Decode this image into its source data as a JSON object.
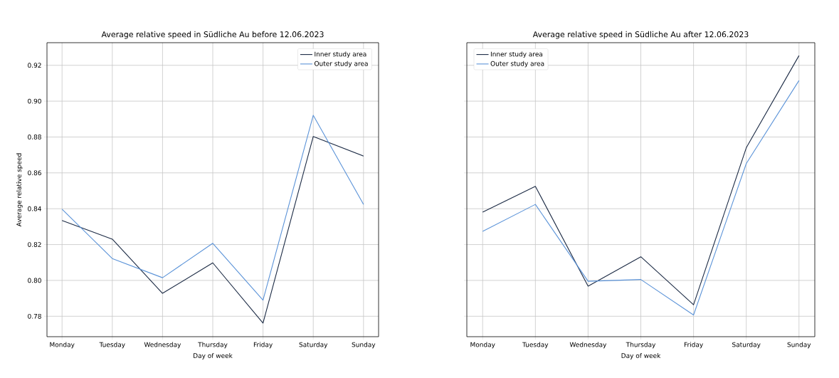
{
  "chart_data": [
    {
      "type": "line",
      "title": "Average relative speed in Südliche Au before 12.06.2023",
      "xlabel": "Day of week",
      "ylabel": "Average relative speed",
      "categories": [
        "Monday",
        "Tuesday",
        "Wednesday",
        "Thursday",
        "Friday",
        "Saturday",
        "Sunday"
      ],
      "series": [
        {
          "name": "Inner study area",
          "color": "#1b2a44",
          "values": [
            0.8334,
            0.823,
            0.7928,
            0.8098,
            0.7762,
            0.8803,
            0.8694
          ]
        },
        {
          "name": "Outer study area",
          "color": "#5b93d8",
          "values": [
            0.8397,
            0.8122,
            0.8015,
            0.8207,
            0.789,
            0.8921,
            0.8424
          ]
        }
      ],
      "ylim": [
        0.7686,
        0.9326
      ],
      "yticks": [
        {
          "value": 0.78,
          "label": "0.78"
        },
        {
          "value": 0.8,
          "label": "0.80"
        },
        {
          "value": 0.82,
          "label": "0.82"
        },
        {
          "value": 0.84,
          "label": "0.84"
        },
        {
          "value": 0.86,
          "label": "0.86"
        },
        {
          "value": 0.88,
          "label": "0.88"
        },
        {
          "value": 0.9,
          "label": "0.90"
        },
        {
          "value": 0.92,
          "label": "0.92"
        }
      ],
      "grid": true,
      "legend": "top right"
    },
    {
      "type": "line",
      "title": "Average relative speed in Südliche Au after 12.06.2023",
      "xlabel": "Day of week",
      "categories": [
        "Monday",
        "Tuesday",
        "Wednesday",
        "Thursday",
        "Friday",
        "Saturday",
        "Sunday"
      ],
      "series": [
        {
          "name": "Inner study area",
          "color": "#1b2a44",
          "values": [
            0.8381,
            0.8525,
            0.7968,
            0.8132,
            0.7864,
            0.874,
            0.9254
          ]
        },
        {
          "name": "Outer study area",
          "color": "#5b93d8",
          "values": [
            0.8274,
            0.8424,
            0.7995,
            0.8005,
            0.7807,
            0.8652,
            0.9115
          ]
        }
      ],
      "ylim": [
        0.7686,
        0.9326
      ],
      "yticks": [
        0.78,
        0.8,
        0.82,
        0.84,
        0.86,
        0.88,
        0.9,
        0.92
      ],
      "tick_labels": "x",
      "grid": true,
      "legend": "top left"
    }
  ]
}
